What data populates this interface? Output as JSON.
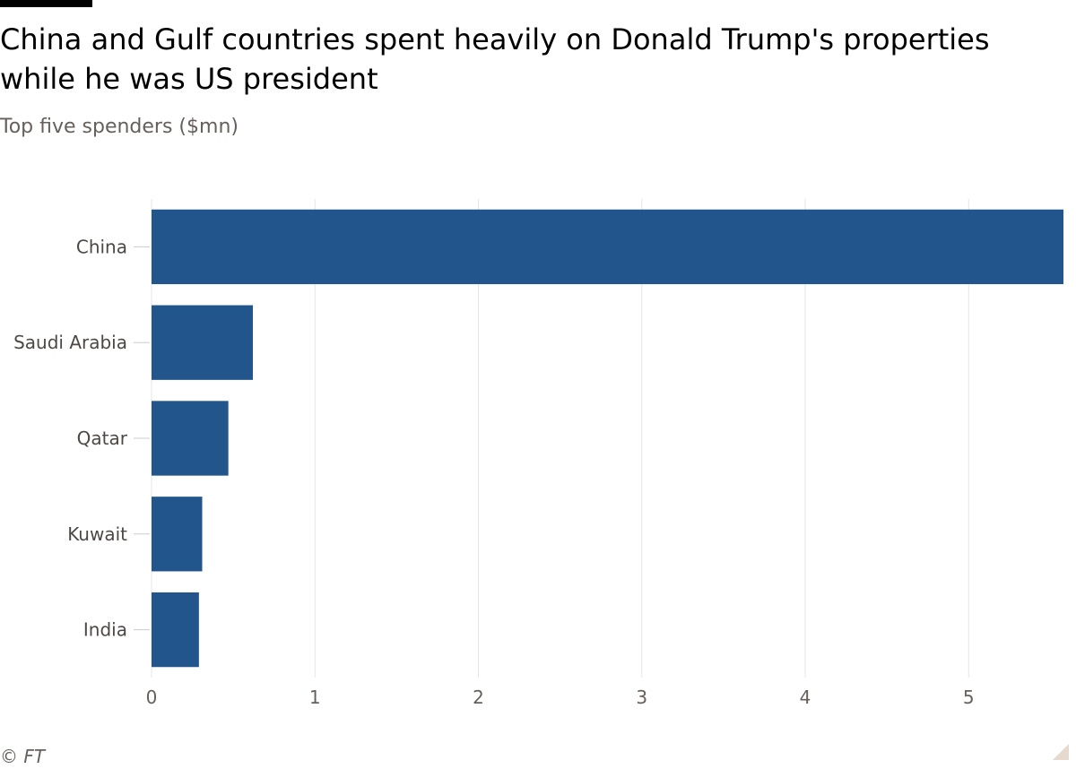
{
  "header": {
    "title": "China and Gulf countries spent heavily on Donald Trump's properties while he was US president",
    "subtitle": "Top five spenders ($mn)"
  },
  "footer": {
    "source": "© FT"
  },
  "colors": {
    "bar": "#22558b",
    "grid": "#e6e6e6",
    "tick_label": "#66605c"
  },
  "chart_data": {
    "type": "bar",
    "orientation": "horizontal",
    "title": "China and Gulf countries spent heavily on Donald Trump's properties while he was US president",
    "subtitle": "Top five spenders ($mn)",
    "categories": [
      "China",
      "Saudi Arabia",
      "Qatar",
      "Kuwait",
      "India"
    ],
    "values": [
      5.58,
      0.62,
      0.47,
      0.31,
      0.29
    ],
    "xlim": [
      0,
      5.58
    ],
    "xticks": [
      0,
      1,
      2,
      3,
      4,
      5
    ],
    "grid": true,
    "legend": "none"
  }
}
